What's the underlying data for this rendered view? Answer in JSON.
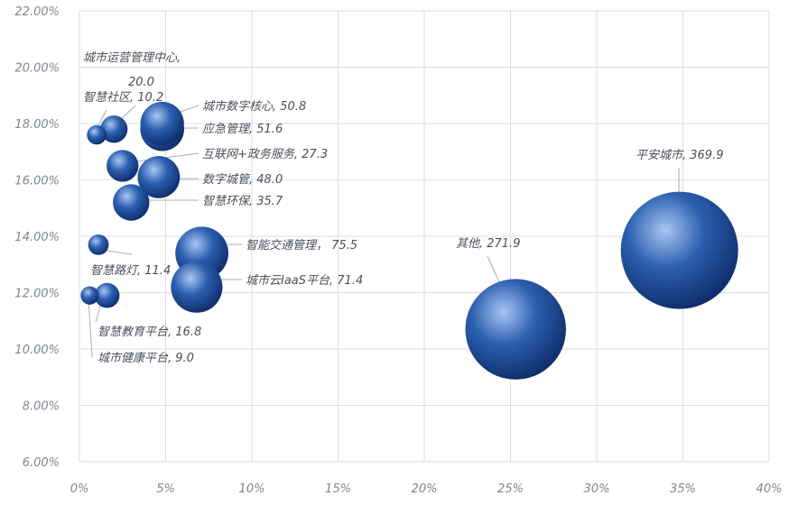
{
  "chart_data": {
    "type": "bubble",
    "title": "",
    "xlabel": "",
    "ylabel": "",
    "xlim": [
      0,
      40
    ],
    "ylim": [
      6,
      22
    ],
    "grid": true,
    "x_ticks": [
      0,
      5,
      10,
      15,
      20,
      25,
      30,
      35,
      40
    ],
    "x_tick_labels": [
      "0%",
      "5%",
      "10%",
      "15%",
      "20%",
      "25%",
      "30%",
      "35%",
      "40%"
    ],
    "y_ticks": [
      6,
      8,
      10,
      12,
      14,
      16,
      18,
      20,
      22
    ],
    "y_tick_labels": [
      "6.00%",
      "8.00%",
      "10.00%",
      "12.00%",
      "14.00%",
      "16.00%",
      "18.00%",
      "20.00%",
      "22.00%"
    ],
    "colors": {
      "bubble_base": "#2b5fb0",
      "bubble_dark": "#0d2a66",
      "bubble_light": "#a9c6f2"
    },
    "points": [
      {
        "label": "平安城市, 369.9",
        "x": 34.8,
        "y": 13.5,
        "size": 369.9
      },
      {
        "label": "其他, 271.9",
        "x": 25.3,
        "y": 10.7,
        "size": 271.9
      },
      {
        "label": "智能交通管理， 75.5",
        "x": 7.1,
        "y": 13.4,
        "size": 75.5
      },
      {
        "label": "城市云IaaS平台, 71.4",
        "x": 6.8,
        "y": 12.2,
        "size": 71.4
      },
      {
        "label": "应急管理, 51.6",
        "x": 4.8,
        "y": 17.8,
        "size": 51.6
      },
      {
        "label": "城市数字核心, 50.8",
        "x": 4.8,
        "y": 18.0,
        "size": 50.8
      },
      {
        "label": "数字城管, 48.0",
        "x": 4.6,
        "y": 16.1,
        "size": 48.0
      },
      {
        "label": "智慧环保, 35.7",
        "x": 3.0,
        "y": 15.2,
        "size": 35.7
      },
      {
        "label": "互联网+政务服务, 27.3",
        "x": 2.5,
        "y": 16.5,
        "size": 27.3
      },
      {
        "label": "城市运营管理中心, 20.0",
        "x": 2.0,
        "y": 17.8,
        "size": 20.0
      },
      {
        "label": "智慧教育平台, 16.8",
        "x": 1.6,
        "y": 11.9,
        "size": 16.8
      },
      {
        "label": "智慧路灯, 11.4",
        "x": 1.1,
        "y": 13.7,
        "size": 11.4
      },
      {
        "label": "智慧社区, 10.2",
        "x": 1.0,
        "y": 17.6,
        "size": 10.2
      },
      {
        "label": "城市健康平台, 9.0",
        "x": 0.6,
        "y": 11.9,
        "size": 9.0
      }
    ]
  }
}
